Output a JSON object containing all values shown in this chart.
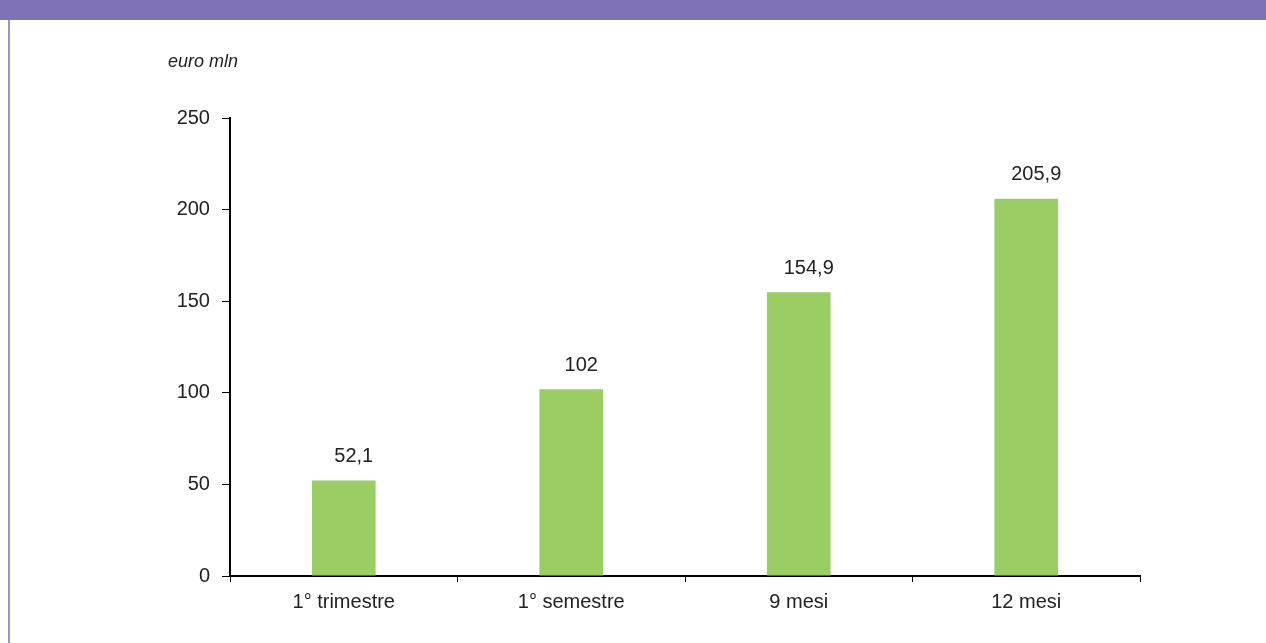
{
  "chart_data": {
    "type": "bar",
    "ylabel": "euro mln",
    "categories": [
      "1° trimestre",
      "1° semestre",
      "9 mesi",
      "12 mesi"
    ],
    "values": [
      52.1,
      102,
      154.9,
      205.9
    ],
    "color": "#9acd63",
    "value_labels": [
      "52,1",
      "102",
      "154,9",
      "205,9"
    ],
    "ylim": [
      0,
      250
    ],
    "yticks": [
      0,
      50,
      100,
      150,
      200,
      250
    ],
    "grid": false,
    "legend": false
  }
}
